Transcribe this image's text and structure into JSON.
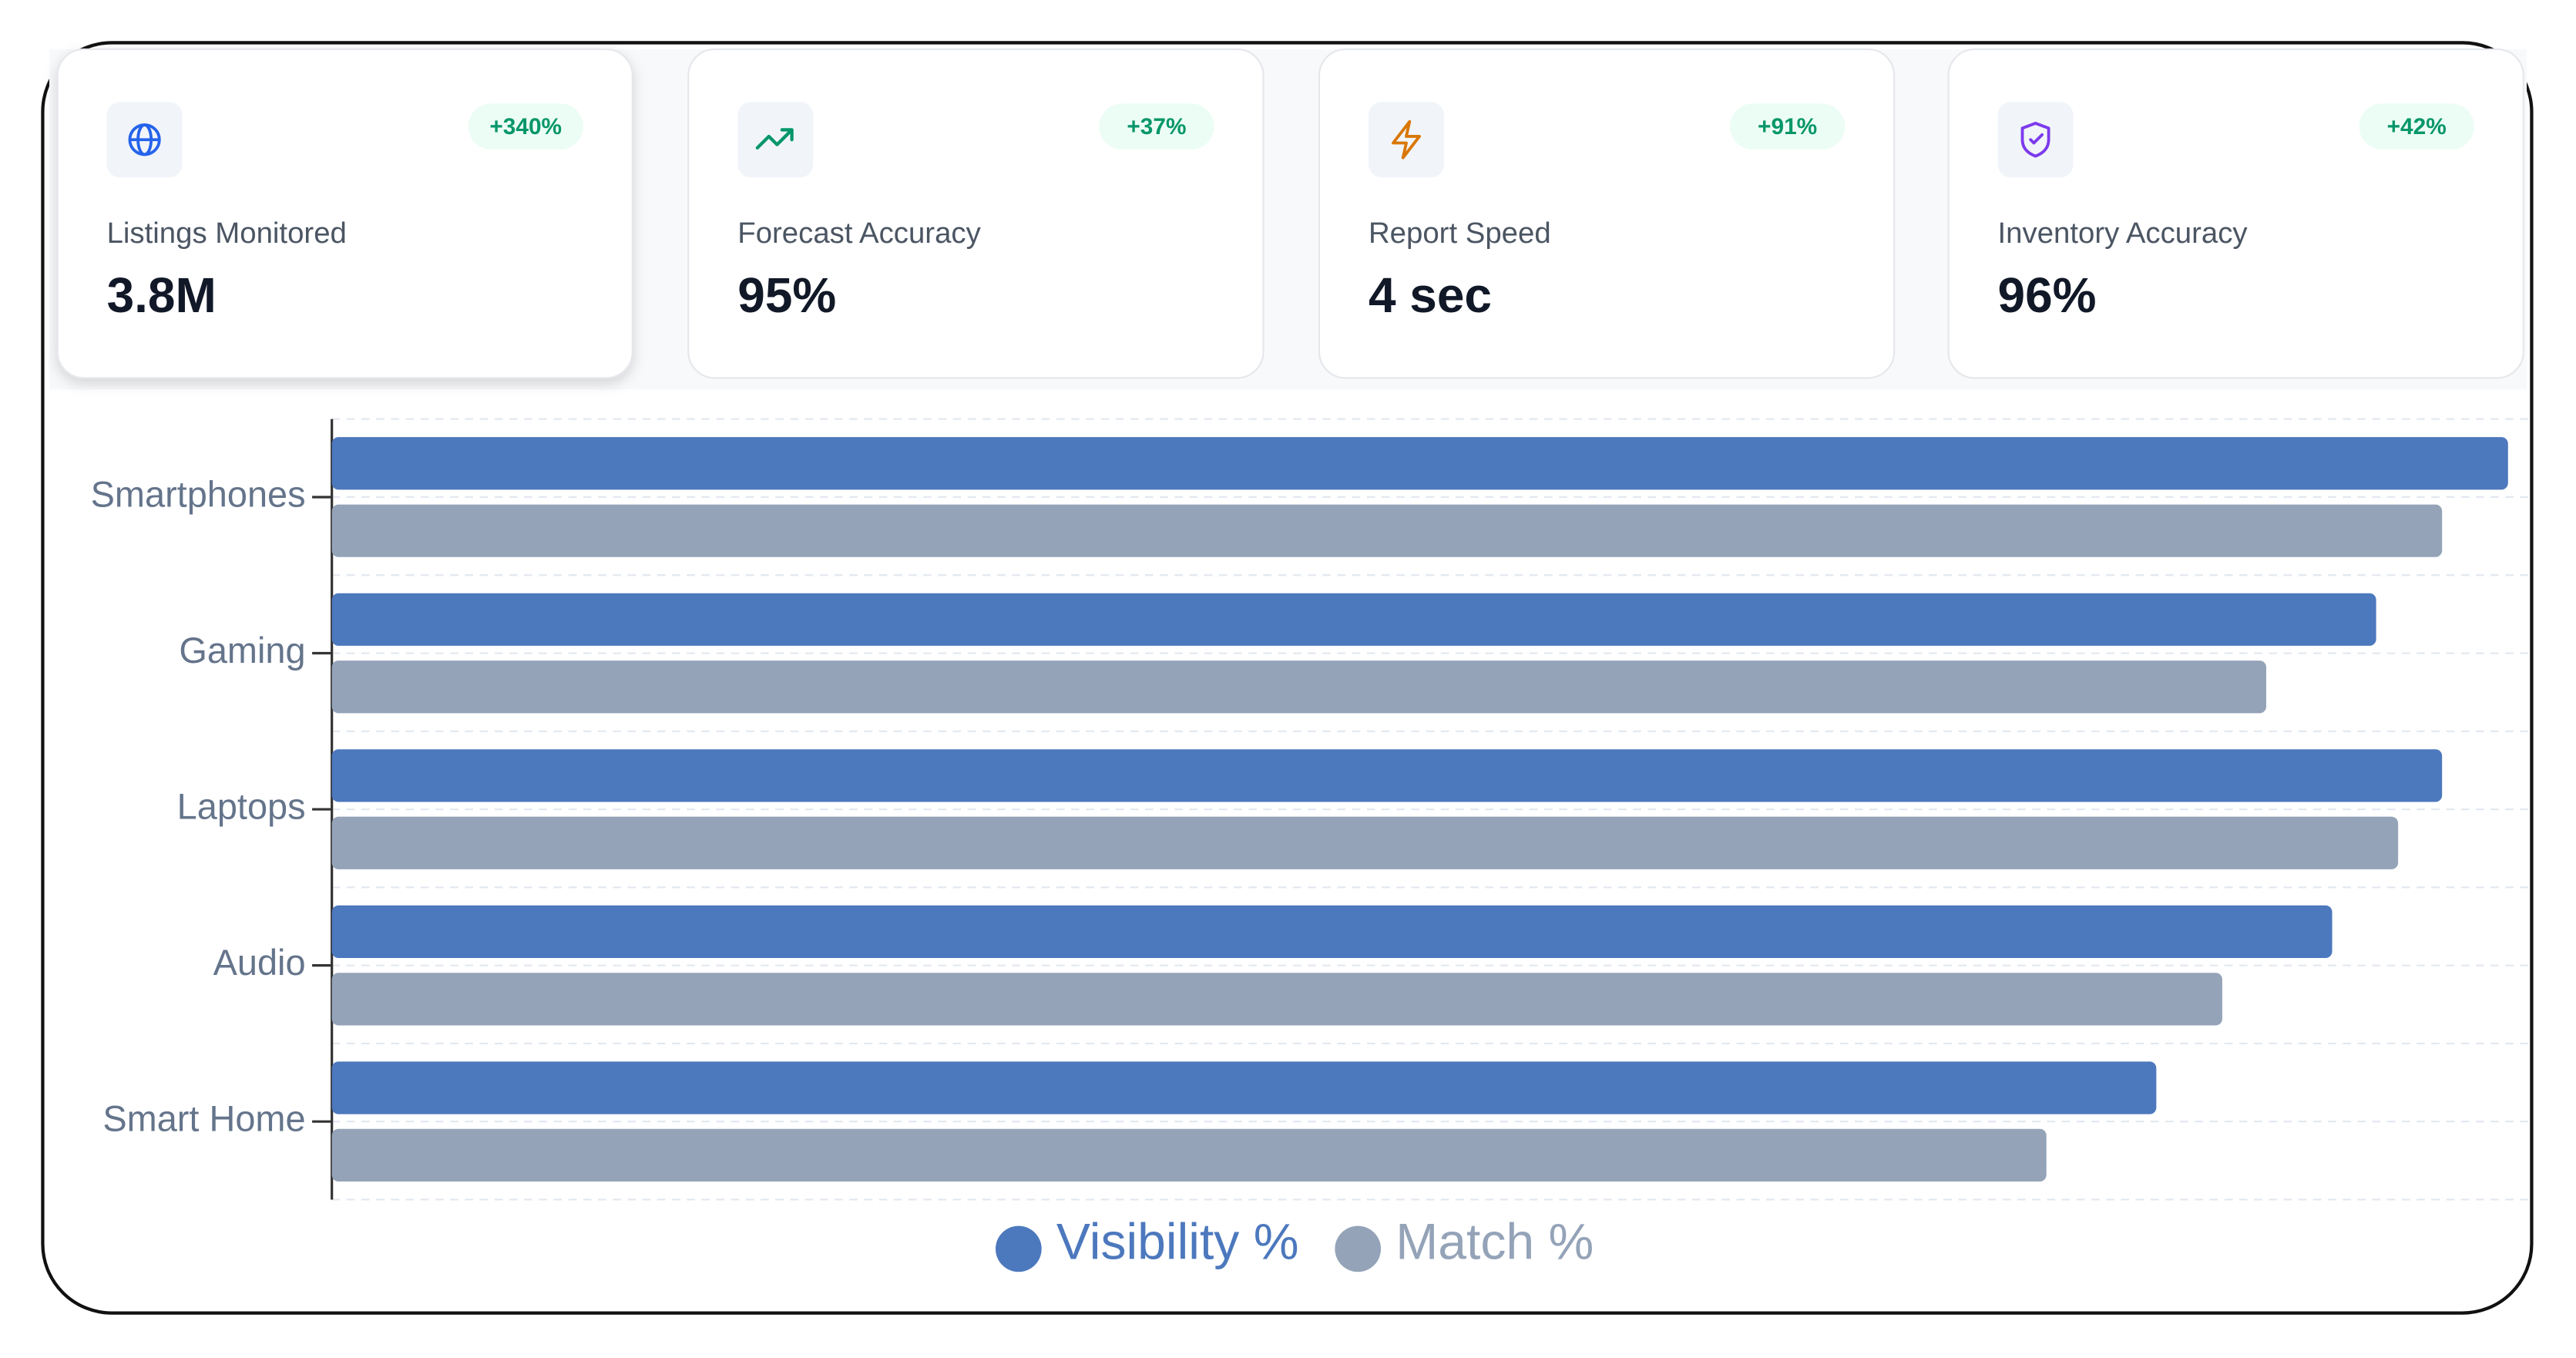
{
  "cards": [
    {
      "label": "Listings Monitored",
      "value": "3.8M",
      "change": "+340%"
    },
    {
      "label": "Forecast Accuracy",
      "value": "95%",
      "change": "+37%"
    },
    {
      "label": "Report Speed",
      "value": "4 sec",
      "change": "+91%"
    },
    {
      "label": "Inventory Accuracy",
      "value": "96%",
      "change": "+42%"
    }
  ],
  "chart_data": {
    "type": "hbar",
    "categories": [
      "Smartphones",
      "Gaming",
      "Laptops",
      "Audio",
      "Smart Home"
    ],
    "series": [
      {
        "name": "Visibility %",
        "color": "#4c78bd",
        "values": [
          99,
          93,
          96,
          91,
          83
        ]
      },
      {
        "name": "Match %",
        "color": "#94a3b8",
        "values": [
          96,
          88,
          94,
          86,
          78
        ]
      }
    ],
    "xlim": [
      0,
      100
    ],
    "legend": "bottom"
  }
}
